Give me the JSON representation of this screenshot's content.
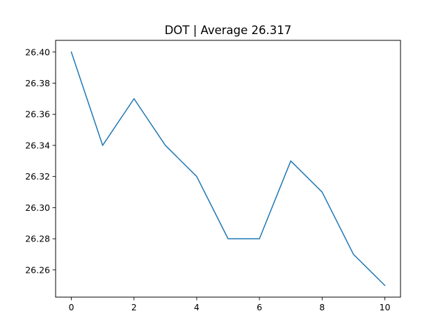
{
  "chart_data": {
    "type": "line",
    "title": "DOT | Average 26.317",
    "xlabel": "",
    "ylabel": "",
    "x": [
      0,
      1,
      2,
      3,
      4,
      5,
      6,
      7,
      8,
      9,
      10
    ],
    "series": [
      {
        "values": [
          26.4,
          26.34,
          26.37,
          26.34,
          26.32,
          26.28,
          26.28,
          26.33,
          26.31,
          26.27,
          26.25
        ],
        "color": "#1f77b4"
      }
    ],
    "xlim": [
      -0.5,
      10.5
    ],
    "ylim": [
      26.2425,
      26.4075
    ],
    "xticks": [
      0,
      2,
      4,
      6,
      8,
      10
    ],
    "xtick_labels": [
      "0",
      "2",
      "4",
      "6",
      "8",
      "10"
    ],
    "yticks": [
      26.26,
      26.28,
      26.3,
      26.32,
      26.34,
      26.36,
      26.38,
      26.4
    ],
    "ytick_labels": [
      "26.26",
      "26.28",
      "26.30",
      "26.32",
      "26.34",
      "26.36",
      "26.38",
      "26.40"
    ],
    "grid": false,
    "legend": "none"
  }
}
